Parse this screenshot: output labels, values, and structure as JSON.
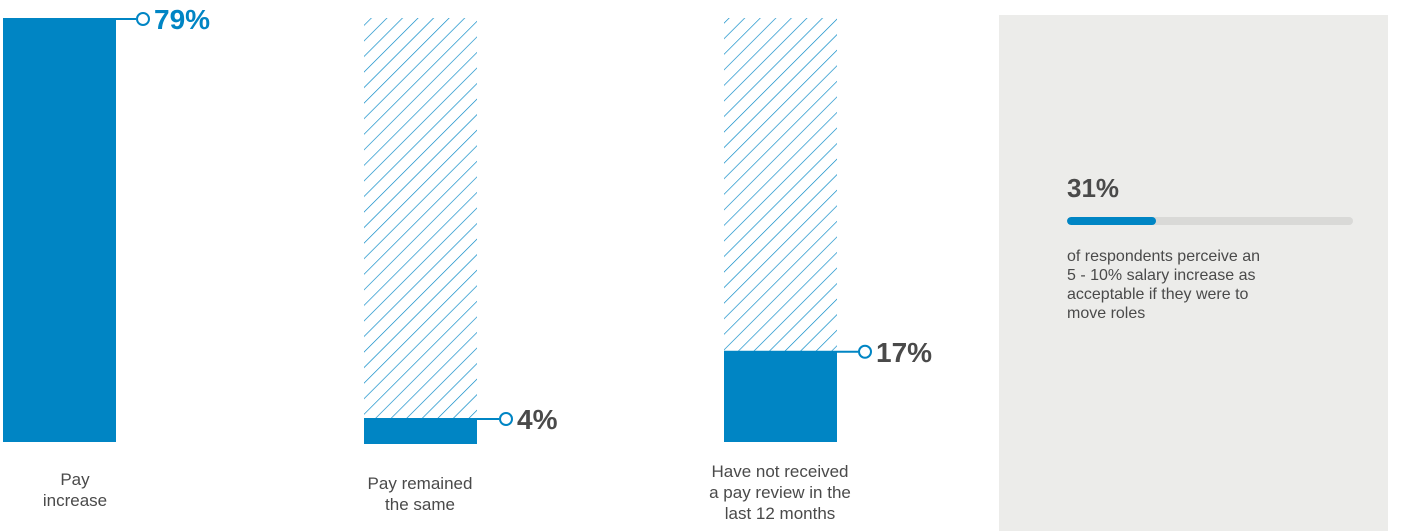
{
  "chart_data": {
    "type": "bar",
    "title": "",
    "xlabel": "",
    "ylabel": "",
    "ylim": [
      0,
      79
    ],
    "grid": false,
    "categories": [
      "Pay increase",
      "Pay remained the same",
      "Have not received a pay review in the last 12 months"
    ],
    "category_label_lines": [
      [
        "Pay",
        "increase"
      ],
      [
        "Pay remained",
        "the same"
      ],
      [
        "Have not received",
        "a pay review in the",
        "last 12 months"
      ]
    ],
    "values": [
      79,
      4,
      17
    ],
    "value_labels": [
      "79%",
      "4%",
      "17%"
    ],
    "colors": {
      "bar": "#0085c4",
      "label_79": "#0085c4",
      "label_other": "#4a4a4a",
      "hatch": "#0085c4"
    }
  },
  "stat": {
    "value": "31%",
    "fraction": 0.31,
    "description_lines": [
      "of respondents perceive an",
      "5 - 10% salary increase as",
      "acceptable if they were to",
      "move roles"
    ]
  }
}
